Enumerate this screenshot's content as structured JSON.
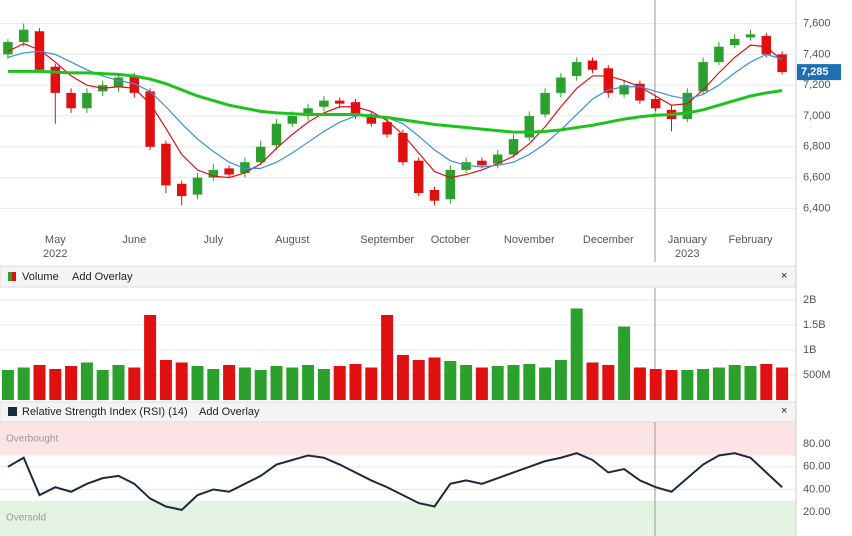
{
  "chart_data": [
    {
      "type": "candlestick",
      "up_color": "#2ca02c",
      "down_color": "#e01010",
      "categories": [
        null,
        null,
        null,
        "May",
        null,
        null,
        null,
        null,
        "June",
        null,
        null,
        null,
        null,
        "July",
        null,
        null,
        null,
        null,
        "August",
        null,
        null,
        null,
        null,
        null,
        "September",
        null,
        null,
        null,
        "October",
        null,
        null,
        null,
        null,
        "November",
        null,
        null,
        null,
        null,
        "December",
        null,
        null,
        null,
        null,
        "January",
        null,
        null,
        null,
        "February",
        null,
        null
      ],
      "x_sublabels": [
        null,
        null,
        null,
        "2022",
        null,
        null,
        null,
        null,
        null,
        null,
        null,
        null,
        null,
        null,
        null,
        null,
        null,
        null,
        null,
        null,
        null,
        null,
        null,
        null,
        null,
        null,
        null,
        null,
        null,
        null,
        null,
        null,
        null,
        null,
        null,
        null,
        null,
        null,
        null,
        null,
        null,
        null,
        null,
        "2023",
        null,
        null,
        null,
        null,
        null,
        null
      ],
      "open": [
        7400,
        7480,
        7550,
        7320,
        7150,
        7050,
        7160,
        7190,
        7260,
        7160,
        6820,
        6560,
        6490,
        6600,
        6660,
        6630,
        6700,
        6810,
        6950,
        7000,
        7060,
        7100,
        7090,
        7010,
        6960,
        6890,
        6710,
        6520,
        6460,
        6650,
        6710,
        6690,
        6750,
        6860,
        7010,
        7150,
        7260,
        7360,
        7310,
        7140,
        7210,
        7110,
        7040,
        6980,
        7160,
        7350,
        7460,
        7510,
        7520,
        7400
      ],
      "high": [
        7500,
        7600,
        7570,
        7340,
        7180,
        7180,
        7230,
        7280,
        7280,
        7180,
        6840,
        6580,
        6630,
        6690,
        6680,
        6730,
        6840,
        6980,
        7030,
        7080,
        7130,
        7120,
        7110,
        7030,
        6980,
        6910,
        6730,
        6540,
        6680,
        6730,
        6730,
        6780,
        6880,
        7030,
        7180,
        7280,
        7380,
        7380,
        7330,
        7230,
        7230,
        7130,
        7070,
        7180,
        7380,
        7480,
        7530,
        7560,
        7540,
        7420
      ],
      "low": [
        7370,
        7450,
        7280,
        6950,
        7020,
        7020,
        7130,
        7160,
        7120,
        6780,
        6500,
        6420,
        6460,
        6580,
        6600,
        6600,
        6680,
        6780,
        6930,
        6970,
        7030,
        7050,
        6980,
        6930,
        6860,
        6680,
        6480,
        6420,
        6430,
        6630,
        6660,
        6660,
        6730,
        6840,
        6990,
        7120,
        7230,
        7280,
        7120,
        7120,
        7080,
        7030,
        6900,
        6960,
        7140,
        7330,
        7440,
        7490,
        7380,
        7270
      ],
      "close": [
        7480,
        7560,
        7300,
        7150,
        7050,
        7150,
        7200,
        7250,
        7150,
        6800,
        6550,
        6480,
        6600,
        6650,
        6620,
        6700,
        6800,
        6950,
        7000,
        7050,
        7100,
        7080,
        7000,
        6950,
        6880,
        6700,
        6500,
        6450,
        6650,
        6700,
        6680,
        6750,
        6850,
        7000,
        7150,
        7250,
        7350,
        7300,
        7150,
        7200,
        7100,
        7050,
        6980,
        7150,
        7350,
        7450,
        7500,
        7530,
        7400,
        7285
      ],
      "series": [
        {
          "color": "#e01010",
          "values": [
            7420,
            7470,
            7430,
            7350,
            7260,
            7200,
            7180,
            7190,
            7180,
            7080,
            6920,
            6750,
            6650,
            6610,
            6600,
            6630,
            6690,
            6790,
            6880,
            6960,
            7020,
            7060,
            7060,
            7030,
            6970,
            6880,
            6760,
            6640,
            6600,
            6620,
            6650,
            6690,
            6740,
            6820,
            6930,
            7060,
            7180,
            7260,
            7260,
            7230,
            7190,
            7130,
            7070,
            7080,
            7170,
            7280,
            7380,
            7460,
            7450,
            7360
          ]
        },
        {
          "color": "#3a8fd8",
          "values": [
            7380,
            7410,
            7420,
            7400,
            7350,
            7300,
            7260,
            7230,
            7210,
            7160,
            7060,
            6950,
            6850,
            6770,
            6700,
            6660,
            6660,
            6700,
            6760,
            6830,
            6900,
            6960,
            7000,
            7010,
            6990,
            6950,
            6870,
            6780,
            6710,
            6680,
            6670,
            6680,
            6700,
            6750,
            6820,
            6910,
            7010,
            7110,
            7170,
            7190,
            7190,
            7160,
            7130,
            7110,
            7140,
            7200,
            7280,
            7350,
            7400,
            7370
          ]
        },
        {
          "color": "#1ec21e",
          "values": [
            7290,
            7290,
            7290,
            7285,
            7280,
            7280,
            7275,
            7270,
            7260,
            7240,
            7210,
            7170,
            7130,
            7100,
            7070,
            7050,
            7030,
            7020,
            7015,
            7010,
            7010,
            7010,
            7010,
            7000,
            6990,
            6975,
            6960,
            6945,
            6935,
            6925,
            6915,
            6905,
            6895,
            6895,
            6900,
            6910,
            6925,
            6940,
            6960,
            6980,
            6995,
            7005,
            7010,
            7020,
            7040,
            7070,
            7100,
            7130,
            7150,
            7165
          ]
        }
      ],
      "ylim": [
        6260,
        7740
      ],
      "yticks": [
        {
          "value": 6400,
          "label": "6,400"
        },
        {
          "value": 6600,
          "label": "6,600"
        },
        {
          "value": 6800,
          "label": "6,800"
        },
        {
          "value": 7000,
          "label": "7,000"
        },
        {
          "value": 7200,
          "label": "7,200"
        },
        {
          "value": 7400,
          "label": "7,400"
        },
        {
          "value": 7600,
          "label": "7,600"
        }
      ],
      "last_price": {
        "value": 7285,
        "label": "7,285"
      },
      "grid": true
    },
    {
      "type": "bar",
      "title": "Volume",
      "overlay_button": "Add Overlay",
      "values": [
        600000000,
        650000000,
        700000000,
        620000000,
        680000000,
        750000000,
        600000000,
        700000000,
        650000000,
        1700000000,
        800000000,
        750000000,
        680000000,
        620000000,
        700000000,
        650000000,
        600000000,
        680000000,
        650000000,
        700000000,
        620000000,
        680000000,
        720000000,
        650000000,
        1700000000,
        900000000,
        800000000,
        850000000,
        780000000,
        700000000,
        650000000,
        680000000,
        700000000,
        720000000,
        650000000,
        800000000,
        1830000000,
        750000000,
        700000000,
        1470000000,
        650000000,
        620000000,
        600000000,
        600000000,
        620000000,
        650000000,
        700000000,
        680000000,
        720000000,
        650000000
      ],
      "ylim": [
        0,
        2240000000
      ],
      "yticks": [
        {
          "value": 500000000,
          "label": "500M"
        },
        {
          "value": 1000000000,
          "label": "1B"
        },
        {
          "value": 1500000000,
          "label": "1.5B"
        },
        {
          "value": 2000000000,
          "label": "2B"
        }
      ],
      "grid": true
    },
    {
      "type": "line",
      "title": "Relative Strength Index (RSI) (14)",
      "overlay_button": "Add Overlay",
      "color": "#1b2a3e",
      "overbought": 70,
      "oversold": 30,
      "overbought_label": "Overbought",
      "oversold_label": "Oversold",
      "values": [
        60,
        68,
        35,
        42,
        38,
        45,
        50,
        52,
        45,
        32,
        25,
        22,
        35,
        40,
        38,
        45,
        52,
        62,
        66,
        70,
        68,
        62,
        55,
        48,
        42,
        35,
        28,
        25,
        45,
        48,
        45,
        50,
        55,
        60,
        65,
        68,
        72,
        66,
        55,
        58,
        48,
        42,
        38,
        50,
        62,
        70,
        72,
        68,
        55,
        42
      ],
      "ylim": [
        -1,
        99.5
      ],
      "yticks": [
        {
          "value": 20,
          "label": "20.00"
        },
        {
          "value": 40,
          "label": "40.00"
        },
        {
          "value": 60,
          "label": "60.00"
        },
        {
          "value": 80,
          "label": "80.00"
        }
      ],
      "grid": true
    }
  ]
}
